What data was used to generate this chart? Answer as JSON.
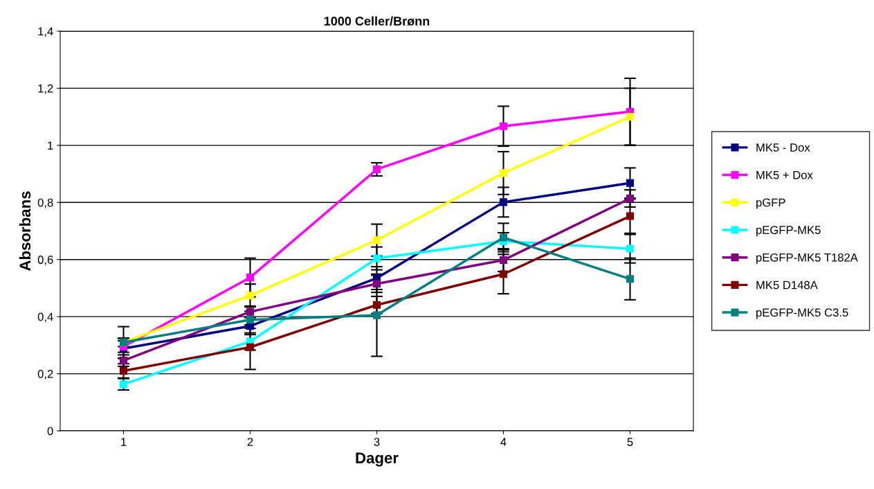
{
  "chart_data": {
    "type": "line",
    "title": "1000 Celler/Brønn",
    "xlabel": "Dager",
    "ylabel": "Absorbans",
    "x": [
      1,
      2,
      3,
      4,
      5
    ],
    "xlim": [
      0.5,
      5.5
    ],
    "xticks": [
      1,
      2,
      3,
      4,
      5
    ],
    "ylim": [
      0,
      1.4
    ],
    "yticks": [
      0,
      {
        "value": 0.2,
        "label": "0,2"
      },
      {
        "value": 0.4,
        "label": "0,4"
      },
      {
        "value": 0.6,
        "label": "0,6"
      },
      {
        "value": 0.8,
        "label": "0,8"
      },
      1,
      {
        "value": 1.2,
        "label": "1,2"
      },
      {
        "value": 1.4,
        "label": "1,4"
      }
    ],
    "grid": "y",
    "legend": "right",
    "marker": "square",
    "line_style": "solid",
    "series": [
      {
        "name": "MK5 - Dox",
        "color": "#000080",
        "values": [
          0.288,
          0.367,
          0.535,
          0.801,
          0.868
        ],
        "errors": [
          0.035,
          0.03,
          0.04,
          0.052,
          0.053
        ]
      },
      {
        "name": "MK5 + Dox",
        "color": "#ff00ff",
        "values": [
          0.295,
          0.537,
          0.916,
          1.067,
          1.118
        ],
        "errors": [
          0.02,
          0.068,
          0.023,
          0.07,
          0.117
        ]
      },
      {
        "name": "pGFP",
        "color": "#ffff00",
        "values": [
          0.31,
          0.474,
          0.668,
          0.903,
          1.1
        ],
        "errors": [
          0.015,
          0.04,
          0.056,
          0.075,
          0.1
        ]
      },
      {
        "name": "pEGFP-MK5",
        "color": "#00ffff",
        "values": [
          0.163,
          0.313,
          0.604,
          0.664,
          0.638
        ],
        "errors": [
          0.02,
          0.03,
          0.04,
          0.03,
          0.05
        ]
      },
      {
        "name": "pEGFP-MK5 T182A",
        "color": "#800080",
        "values": [
          0.246,
          0.417,
          0.515,
          0.598,
          0.814
        ],
        "errors": [
          0.02,
          0.02,
          0.03,
          0.04,
          0.03
        ]
      },
      {
        "name": "MK5 D148A",
        "color": "#800000",
        "values": [
          0.21,
          0.293,
          0.441,
          0.549,
          0.752
        ],
        "errors": [
          0.025,
          0.078,
          0.03,
          0.069,
          0.06
        ]
      },
      {
        "name": "pEGFP-MK5 C3.5",
        "color": "#008080",
        "values": [
          0.31,
          0.389,
          0.405,
          0.677,
          0.532
        ],
        "errors": [
          0.055,
          0.03,
          0.144,
          0.05,
          0.073
        ]
      }
    ]
  }
}
